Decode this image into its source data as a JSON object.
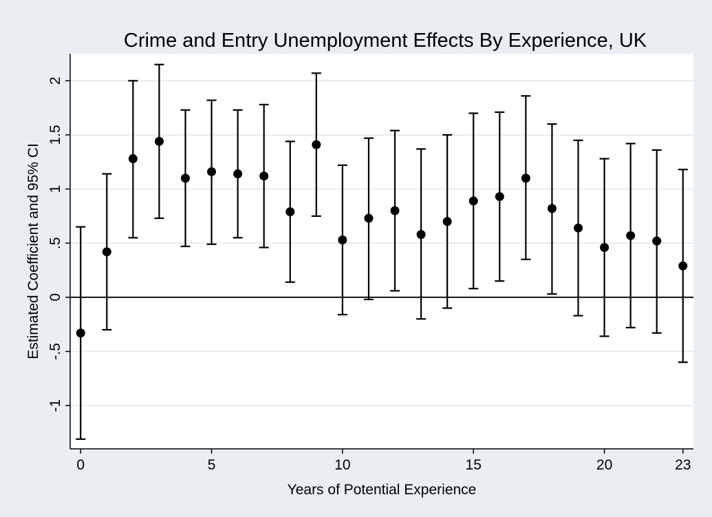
{
  "chart_data": {
    "type": "scatter",
    "title": "Crime and Entry Unemployment Effects By Experience, UK",
    "xlabel": "Years of Potential Experience",
    "ylabel": "Estimated Coefficient and 95% CI",
    "xlim": [
      -0.4,
      23.4
    ],
    "ylim": [
      -1.4,
      2.25
    ],
    "xticks": [
      0,
      5,
      10,
      15,
      20,
      23
    ],
    "xtick_labels": [
      "0",
      "5",
      "10",
      "15",
      "20",
      "23"
    ],
    "yticks": [
      -1,
      -0.5,
      0,
      0.5,
      1,
      1.5,
      2
    ],
    "ytick_labels": [
      "-1",
      "-.5",
      "0",
      ".5",
      "1",
      "1.5",
      "2"
    ],
    "grid": true,
    "reference_line_y": 0,
    "series": [
      {
        "x": [
          0,
          1,
          2,
          3,
          4,
          5,
          6,
          7,
          8,
          9,
          10,
          11,
          12,
          13,
          14,
          15,
          16,
          17,
          18,
          19,
          20,
          21,
          22,
          23
        ],
        "y": [
          -0.33,
          0.42,
          1.28,
          1.44,
          1.1,
          1.16,
          1.14,
          1.12,
          0.79,
          1.41,
          0.53,
          0.73,
          0.8,
          0.58,
          0.7,
          0.89,
          0.93,
          1.1,
          0.82,
          0.64,
          0.46,
          0.57,
          0.52,
          0.29
        ],
        "lower": [
          -1.31,
          -0.3,
          0.55,
          0.73,
          0.47,
          0.49,
          0.55,
          0.46,
          0.14,
          0.75,
          -0.16,
          -0.02,
          0.06,
          -0.2,
          -0.1,
          0.08,
          0.15,
          0.35,
          0.03,
          -0.17,
          -0.36,
          -0.28,
          -0.33,
          -0.6
        ],
        "upper": [
          0.65,
          1.14,
          2.0,
          2.15,
          1.73,
          1.82,
          1.73,
          1.78,
          1.44,
          2.07,
          1.22,
          1.47,
          1.54,
          1.37,
          1.5,
          1.7,
          1.71,
          1.86,
          1.6,
          1.45,
          1.28,
          1.42,
          1.36,
          1.18
        ]
      }
    ],
    "colors": {
      "background": "#e8eef2",
      "plot_background": "#ffffff",
      "marker": "#000000"
    }
  }
}
